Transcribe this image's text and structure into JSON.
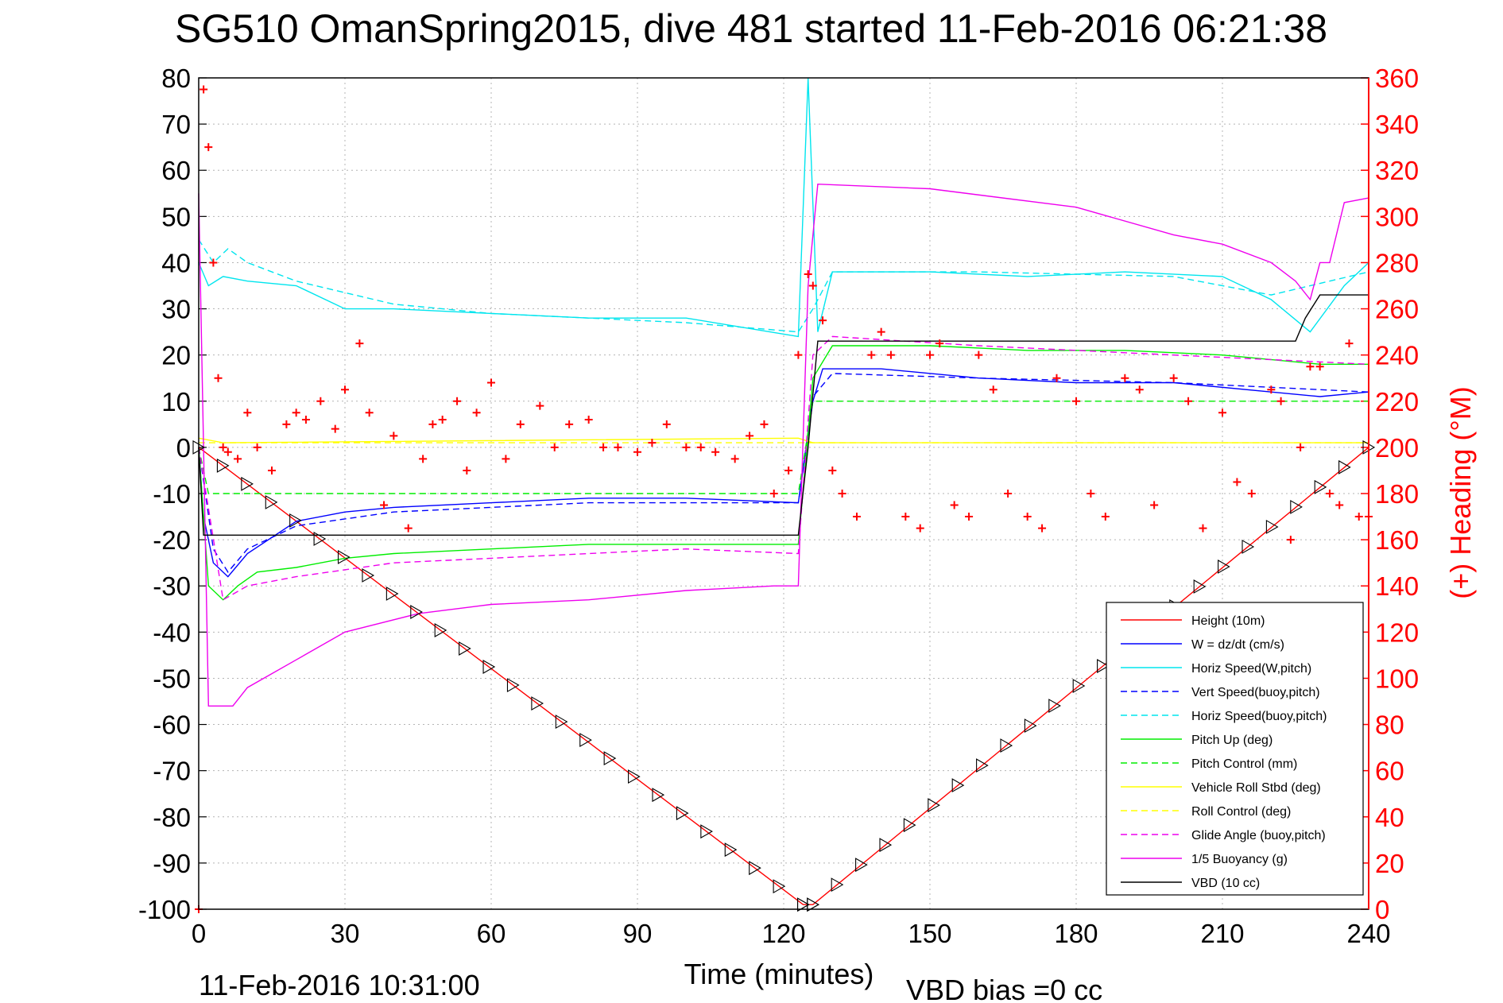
{
  "chart_data": {
    "type": "line",
    "title": "SG510 OmanSpring2015, dive 481 started 11-Feb-2016 06:21:38",
    "xlabel": "Time (minutes)",
    "ylabel_right": "(+) Heading (°M)",
    "footer_left": "11-Feb-2016 10:31:00",
    "footer_right": "VBD bias =0 cc",
    "xlim": [
      0,
      240
    ],
    "ylim_left": [
      -100,
      80
    ],
    "ylim_right": [
      0,
      360
    ],
    "x_ticks": [
      "0",
      "30",
      "60",
      "90",
      "120",
      "150",
      "180",
      "210",
      "240"
    ],
    "y_ticks_left": [
      "-100",
      "-90",
      "-80",
      "-70",
      "-60",
      "-50",
      "-40",
      "-30",
      "-20",
      "-10",
      "0",
      "10",
      "20",
      "30",
      "40",
      "50",
      "60",
      "70",
      "80"
    ],
    "y_ticks_right": [
      "0",
      "20",
      "40",
      "60",
      "80",
      "100",
      "120",
      "140",
      "160",
      "180",
      "200",
      "220",
      "240",
      "260",
      "280",
      "300",
      "320",
      "340",
      "360"
    ],
    "grid": true,
    "legend_position": "bottom-right",
    "colors": {
      "red": "#ff0000",
      "blue": "#0000ff",
      "cyan": "#00e5ee",
      "green": "#00ee00",
      "yellow": "#ffff00",
      "magenta": "#ee00ee",
      "black": "#000000",
      "grid": "#b4b4b4"
    },
    "series": [
      {
        "name": "Height (10m)",
        "color": "#ff0000",
        "dash": "solid",
        "x": [
          0,
          124,
          126,
          240
        ],
        "y": [
          0,
          -99,
          -99,
          0
        ]
      },
      {
        "name": "W = dz/dt (cm/s)",
        "color": "#0000ff",
        "dash": "solid",
        "x": [
          0,
          1,
          3,
          6,
          10,
          20,
          30,
          40,
          60,
          80,
          100,
          123,
          126,
          128,
          140,
          160,
          180,
          200,
          220,
          230,
          240
        ],
        "y": [
          0,
          -15,
          -25,
          -28,
          -23,
          -16,
          -14,
          -13,
          -12,
          -11,
          -11,
          -12,
          10,
          17,
          17,
          15,
          14,
          14,
          12,
          11,
          12
        ]
      },
      {
        "name": "Horiz Speed(W,pitch)",
        "color": "#00e5ee",
        "dash": "solid",
        "x": [
          0,
          2,
          5,
          10,
          20,
          30,
          40,
          60,
          80,
          100,
          123,
          125,
          127,
          130,
          150,
          170,
          190,
          210,
          220,
          228,
          235,
          240
        ],
        "y": [
          40,
          35,
          37,
          36,
          35,
          30,
          30,
          29,
          28,
          28,
          24,
          80,
          25,
          38,
          38,
          37,
          38,
          37,
          32,
          25,
          35,
          40
        ]
      },
      {
        "name": "Vert Speed(buoy,pitch)",
        "color": "#0000ff",
        "dash": "dashed",
        "x": [
          0,
          3,
          6,
          10,
          20,
          40,
          60,
          80,
          100,
          123,
          126,
          130,
          160,
          200,
          240
        ],
        "y": [
          0,
          -22,
          -27,
          -22,
          -17,
          -14,
          -13,
          -12,
          -12,
          -12,
          11,
          16,
          15,
          14,
          12
        ]
      },
      {
        "name": "Horiz Speed(buoy,pitch)",
        "color": "#00e5ee",
        "dash": "dashed",
        "x": [
          0,
          3,
          6,
          10,
          20,
          40,
          60,
          80,
          100,
          123,
          126,
          130,
          160,
          200,
          220,
          240
        ],
        "y": [
          45,
          40,
          43,
          40,
          36,
          31,
          29,
          28,
          27,
          25,
          30,
          38,
          38,
          37,
          33,
          38
        ]
      },
      {
        "name": "Pitch Up (deg)",
        "color": "#00ee00",
        "dash": "solid",
        "x": [
          0,
          2,
          5,
          8,
          12,
          20,
          30,
          40,
          60,
          80,
          100,
          123,
          126,
          130,
          150,
          170,
          190,
          210,
          230,
          240
        ],
        "y": [
          0,
          -30,
          -33,
          -30,
          -27,
          -26,
          -24,
          -23,
          -22,
          -21,
          -21,
          -21,
          15,
          22,
          22,
          21,
          21,
          20,
          18,
          18
        ]
      },
      {
        "name": "Pitch Control (mm)",
        "color": "#00ee00",
        "dash": "dashed",
        "x": [
          0,
          2,
          123,
          126,
          240
        ],
        "y": [
          0,
          -10,
          -10,
          10,
          10
        ]
      },
      {
        "name": "Vehicle Roll Stbd (deg)",
        "color": "#ffff00",
        "dash": "solid",
        "x": [
          0,
          5,
          123,
          126,
          240
        ],
        "y": [
          2,
          1,
          2,
          1,
          1
        ]
      },
      {
        "name": "Roll Control (deg)",
        "color": "#ffff00",
        "dash": "dashed",
        "x": [
          0,
          240
        ],
        "y": [
          1,
          1
        ]
      },
      {
        "name": "Glide Angle (buoy,pitch)",
        "color": "#ee00ee",
        "dash": "dashed",
        "x": [
          0,
          5,
          10,
          20,
          40,
          60,
          80,
          100,
          123,
          126,
          130,
          160,
          200,
          240
        ],
        "y": [
          0,
          -33,
          -30,
          -28,
          -25,
          -24,
          -23,
          -22,
          -23,
          20,
          24,
          22,
          20,
          18
        ]
      },
      {
        "name": "1/5 Buoyancy (g)",
        "color": "#ee00ee",
        "dash": "solid",
        "x": [
          0,
          2,
          7,
          10,
          20,
          30,
          45,
          60,
          80,
          100,
          118,
          123,
          125,
          127,
          150,
          180,
          200,
          210,
          220,
          225,
          228,
          230,
          232,
          235,
          240
        ],
        "y": [
          55,
          -56,
          -56,
          -52,
          -46,
          -40,
          -36,
          -34,
          -33,
          -31,
          -30,
          -30,
          35,
          57,
          56,
          52,
          46,
          44,
          40,
          36,
          32,
          40,
          40,
          53,
          54
        ]
      },
      {
        "name": "VBD (10 cc)",
        "color": "#000000",
        "dash": "solid",
        "x": [
          0,
          1,
          3,
          123,
          125,
          127,
          220,
          225,
          227,
          230,
          240
        ],
        "y": [
          0,
          -19,
          -19,
          -19,
          0,
          23,
          23,
          23,
          28,
          33,
          33
        ]
      }
    ],
    "heading_series": {
      "name": "(+) Heading (°M)",
      "color": "#ff0000",
      "marker": "+",
      "x": [
        0,
        1,
        2,
        3,
        4,
        5,
        6,
        8,
        10,
        12,
        15,
        18,
        20,
        22,
        25,
        28,
        30,
        33,
        35,
        38,
        40,
        43,
        46,
        48,
        50,
        53,
        55,
        57,
        60,
        63,
        66,
        70,
        73,
        76,
        80,
        83,
        86,
        90,
        93,
        96,
        100,
        103,
        106,
        110,
        113,
        116,
        118,
        121,
        123,
        125,
        126,
        128,
        130,
        132,
        135,
        138,
        140,
        142,
        145,
        148,
        150,
        152,
        155,
        158,
        160,
        163,
        166,
        170,
        173,
        176,
        180,
        183,
        186,
        190,
        193,
        196,
        200,
        203,
        206,
        210,
        213,
        216,
        220,
        222,
        224,
        226,
        228,
        230,
        232,
        234,
        236,
        238,
        240
      ],
      "y": [
        0,
        355,
        330,
        280,
        230,
        200,
        198,
        195,
        215,
        200,
        190,
        210,
        215,
        212,
        220,
        208,
        225,
        245,
        215,
        175,
        205,
        165,
        195,
        210,
        212,
        220,
        190,
        215,
        228,
        195,
        210,
        218,
        200,
        210,
        212,
        200,
        200,
        198,
        202,
        210,
        200,
        200,
        198,
        195,
        205,
        210,
        180,
        190,
        240,
        275,
        270,
        255,
        190,
        180,
        170,
        240,
        250,
        240,
        170,
        165,
        240,
        245,
        175,
        170,
        240,
        225,
        180,
        170,
        165,
        230,
        220,
        180,
        170,
        230,
        225,
        175,
        230,
        220,
        165,
        215,
        185,
        180,
        225,
        220,
        160,
        200,
        235,
        235,
        180,
        175,
        245,
        170,
        170
      ]
    }
  }
}
